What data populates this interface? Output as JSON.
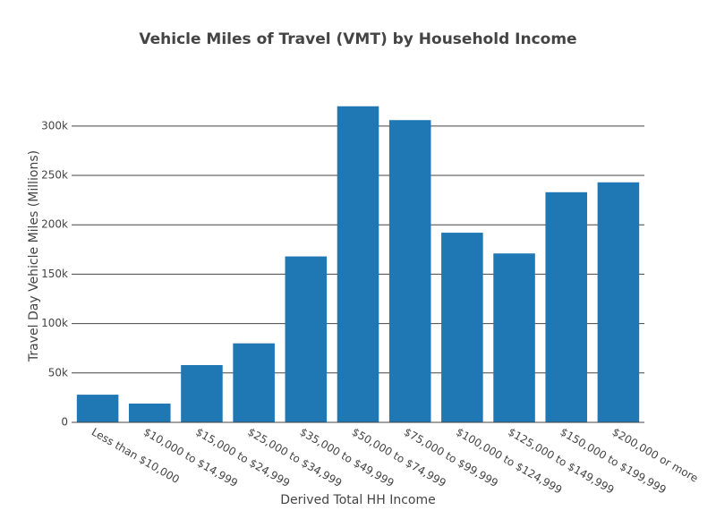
{
  "chart_data": {
    "type": "bar",
    "title": "Vehicle Miles of Travel (VMT) by Household Income",
    "x_label": "Derived Total HH Income",
    "y_label": "Travel Day Vehicle Miles (Millions)",
    "categories": [
      "Less than $10,000",
      "$10,000 to $14,999",
      "$15,000 to $24,999",
      "$25,000 to $34,999",
      "$35,000 to $49,999",
      "$50,000 to $74,999",
      "$75,000 to $99,999",
      "$100,000 to $124,999",
      "$125,000 to $149,999",
      "$150,000 to $199,999",
      "$200,000 or more"
    ],
    "values": [
      28000,
      19000,
      58000,
      80000,
      168000,
      320000,
      306000,
      192000,
      171000,
      233000,
      243000
    ],
    "color": "#1f77b4",
    "ylim": [
      0,
      337000
    ],
    "yticks": [
      0,
      {
        "value": 50000,
        "label": "50k"
      },
      {
        "value": 100000,
        "label": "100k"
      },
      {
        "value": 150000,
        "label": "150k"
      },
      {
        "value": 200000,
        "label": "200k"
      },
      {
        "value": 250000,
        "label": "250k"
      },
      {
        "value": 300000,
        "label": "300k"
      }
    ],
    "grid": true
  }
}
